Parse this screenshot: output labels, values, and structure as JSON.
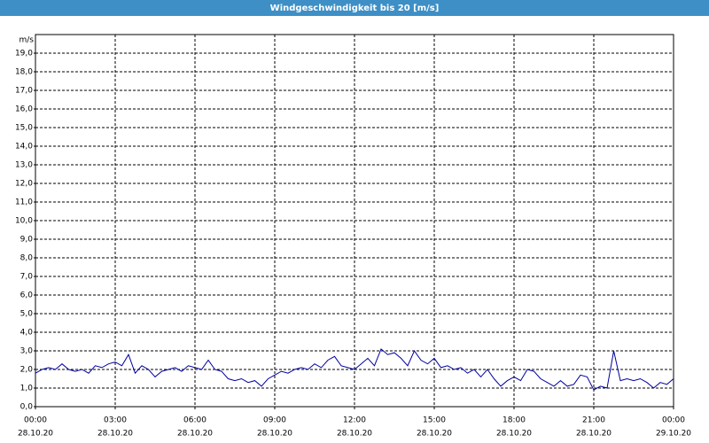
{
  "chart_data": {
    "type": "line",
    "title": "Windgeschwindigkeit bis 20 [m/s]",
    "y_unit": "m/s",
    "x": [
      0,
      0.25,
      0.5,
      0.75,
      1,
      1.25,
      1.5,
      1.75,
      2,
      2.25,
      2.5,
      2.75,
      3,
      3.25,
      3.5,
      3.75,
      4,
      4.25,
      4.5,
      4.75,
      5,
      5.25,
      5.5,
      5.75,
      6,
      6.25,
      6.5,
      6.75,
      7,
      7.25,
      7.5,
      7.75,
      8,
      8.25,
      8.5,
      8.75,
      9,
      9.25,
      9.5,
      9.75,
      10,
      10.25,
      10.5,
      10.75,
      11,
      11.25,
      11.5,
      11.75,
      12,
      12.25,
      12.5,
      12.75,
      13,
      13.25,
      13.5,
      13.75,
      14,
      14.25,
      14.5,
      14.75,
      15,
      15.25,
      15.5,
      15.75,
      16,
      16.25,
      16.5,
      16.75,
      17,
      17.25,
      17.5,
      17.75,
      18,
      18.25,
      18.5,
      18.75,
      19,
      19.25,
      19.5,
      19.75,
      20,
      20.25,
      20.5,
      20.75,
      21,
      21.25,
      21.5,
      21.75,
      22,
      22.25,
      22.5,
      22.75,
      23,
      23.25,
      23.5,
      23.75,
      24
    ],
    "series": [
      {
        "name": "Windgeschwindigkeit",
        "color": "#0000a0",
        "values": [
          1.8,
          2.0,
          2.1,
          2.0,
          2.3,
          2.0,
          1.9,
          2.0,
          1.8,
          2.2,
          2.1,
          2.3,
          2.4,
          2.2,
          2.8,
          1.8,
          2.2,
          2.0,
          1.6,
          1.9,
          2.0,
          2.1,
          1.9,
          2.2,
          2.1,
          2.0,
          2.5,
          2.0,
          1.9,
          1.5,
          1.4,
          1.5,
          1.3,
          1.4,
          1.1,
          1.5,
          1.7,
          1.9,
          1.8,
          2.0,
          2.1,
          2.0,
          2.3,
          2.1,
          2.5,
          2.7,
          2.2,
          2.1,
          2.0,
          2.3,
          2.6,
          2.2,
          3.1,
          2.8,
          2.9,
          2.6,
          2.2,
          3.0,
          2.5,
          2.3,
          2.6,
          2.1,
          2.2,
          2.0,
          2.1,
          1.8,
          2.0,
          1.6,
          2.0,
          1.5,
          1.1,
          1.4,
          1.6,
          1.4,
          2.0,
          1.9,
          1.5,
          1.3,
          1.1,
          1.4,
          1.1,
          1.2,
          1.7,
          1.6,
          0.9,
          1.1,
          1.0,
          3.0,
          1.4,
          1.5,
          1.4,
          1.5,
          1.3,
          1.0,
          1.3,
          1.2,
          1.5
        ]
      }
    ],
    "xlim": [
      0,
      24
    ],
    "xticks": [
      {
        "value": 0,
        "label": "00:00"
      },
      {
        "value": 3,
        "label": "03:00"
      },
      {
        "value": 6,
        "label": "06:00"
      },
      {
        "value": 9,
        "label": "09:00"
      },
      {
        "value": 12,
        "label": "12:00"
      },
      {
        "value": 15,
        "label": "15:00"
      },
      {
        "value": 18,
        "label": "18:00"
      },
      {
        "value": 21,
        "label": "21:00"
      },
      {
        "value": 24,
        "label": "00:00"
      }
    ],
    "xtick_dates": [
      "28.10.20",
      "28.10.20",
      "28.10.20",
      "28.10.20",
      "28.10.20",
      "28.10.20",
      "28.10.20",
      "28.10.20",
      "29.10.20"
    ],
    "ylim": [
      0,
      20
    ],
    "yticks": [
      {
        "value": 0,
        "label": "0,0"
      },
      {
        "value": 1,
        "label": "1,0"
      },
      {
        "value": 2,
        "label": "2,0"
      },
      {
        "value": 3,
        "label": "3,0"
      },
      {
        "value": 4,
        "label": "4,0"
      },
      {
        "value": 5,
        "label": "5,0"
      },
      {
        "value": 6,
        "label": "6,0"
      },
      {
        "value": 7,
        "label": "7,0"
      },
      {
        "value": 8,
        "label": "8,0"
      },
      {
        "value": 9,
        "label": "9,0"
      },
      {
        "value": 10,
        "label": "10,0"
      },
      {
        "value": 11,
        "label": "11,0"
      },
      {
        "value": 12,
        "label": "12,0"
      },
      {
        "value": 13,
        "label": "13,0"
      },
      {
        "value": 14,
        "label": "14,0"
      },
      {
        "value": 15,
        "label": "15,0"
      },
      {
        "value": 16,
        "label": "16,0"
      },
      {
        "value": 17,
        "label": "17,0"
      },
      {
        "value": 18,
        "label": "18,0"
      },
      {
        "value": 19,
        "label": "19,0"
      }
    ],
    "grid": true
  }
}
